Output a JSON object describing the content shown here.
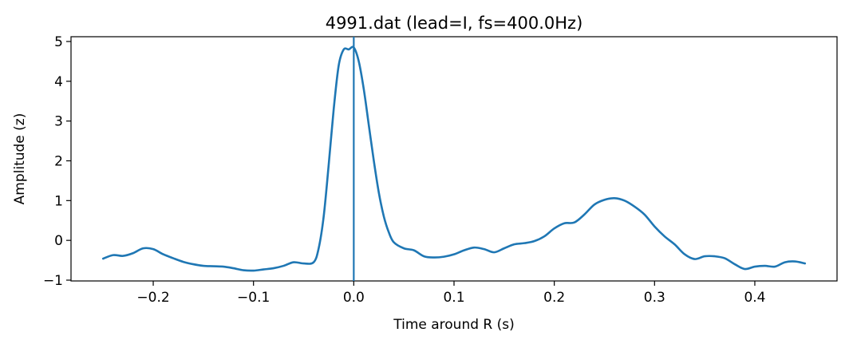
{
  "chart_data": {
    "type": "line",
    "title": "4991.dat (lead=I, fs=400.0Hz)",
    "xlabel": "Time around R (s)",
    "ylabel": "Amplitude (z)",
    "xlim": [
      -0.282,
      0.482
    ],
    "ylim": [
      -1.02,
      5.12
    ],
    "xticks": [
      -0.2,
      -0.1,
      0.0,
      0.1,
      0.2,
      0.3,
      0.4
    ],
    "xtick_labels": [
      "−0.2",
      "−0.1",
      "0.0",
      "0.1",
      "0.2",
      "0.3",
      "0.4"
    ],
    "yticks": [
      -1,
      0,
      1,
      2,
      3,
      4,
      5
    ],
    "ytick_labels": [
      "−1",
      "0",
      "1",
      "2",
      "3",
      "4",
      "5"
    ],
    "grid": false,
    "vline_x": 0.0,
    "color": "#1f77b4",
    "series": [
      {
        "x": [
          -0.25,
          -0.24,
          -0.23,
          -0.22,
          -0.21,
          -0.2,
          -0.19,
          -0.18,
          -0.17,
          -0.16,
          -0.15,
          -0.14,
          -0.13,
          -0.12,
          -0.11,
          -0.1,
          -0.09,
          -0.08,
          -0.07,
          -0.06,
          -0.05,
          -0.04,
          -0.035,
          -0.03,
          -0.025,
          -0.02,
          -0.015,
          -0.01,
          -0.005,
          0.0,
          0.005,
          0.01,
          0.015,
          0.02,
          0.025,
          0.03,
          0.035,
          0.04,
          0.05,
          0.06,
          0.07,
          0.08,
          0.09,
          0.1,
          0.11,
          0.12,
          0.13,
          0.14,
          0.15,
          0.16,
          0.17,
          0.18,
          0.19,
          0.2,
          0.21,
          0.22,
          0.23,
          0.24,
          0.25,
          0.26,
          0.27,
          0.28,
          0.29,
          0.3,
          0.31,
          0.32,
          0.33,
          0.34,
          0.35,
          0.36,
          0.37,
          0.38,
          0.39,
          0.4,
          0.41,
          0.42,
          0.43,
          0.44,
          0.45
        ],
        "y": [
          -0.46,
          -0.37,
          -0.39,
          -0.32,
          -0.2,
          -0.22,
          -0.35,
          -0.45,
          -0.54,
          -0.6,
          -0.64,
          -0.65,
          -0.66,
          -0.7,
          -0.75,
          -0.76,
          -0.73,
          -0.7,
          -0.64,
          -0.55,
          -0.58,
          -0.55,
          -0.2,
          0.6,
          1.9,
          3.3,
          4.4,
          4.8,
          4.8,
          4.85,
          4.5,
          3.8,
          2.9,
          2.0,
          1.2,
          0.6,
          0.2,
          -0.05,
          -0.2,
          -0.25,
          -0.4,
          -0.43,
          -0.41,
          -0.35,
          -0.25,
          -0.18,
          -0.22,
          -0.3,
          -0.2,
          -0.1,
          -0.07,
          -0.02,
          0.1,
          0.3,
          0.43,
          0.45,
          0.65,
          0.9,
          1.02,
          1.06,
          1.0,
          0.85,
          0.65,
          0.35,
          0.1,
          -0.1,
          -0.35,
          -0.47,
          -0.4,
          -0.4,
          -0.45,
          -0.6,
          -0.72,
          -0.66,
          -0.64,
          -0.66,
          -0.55,
          -0.53,
          -0.58
        ]
      }
    ]
  }
}
